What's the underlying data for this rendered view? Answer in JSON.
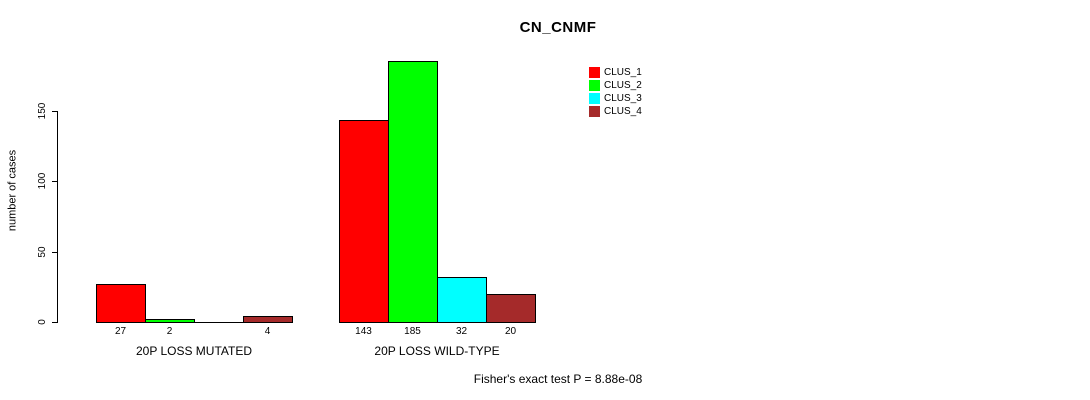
{
  "chart_data": {
    "type": "bar",
    "title": "CN_CNMF",
    "ylabel": "number of cases",
    "xlabel": "",
    "categories": [
      "20P LOSS MUTATED",
      "20P LOSS WILD-TYPE"
    ],
    "series": [
      {
        "name": "CLUS_1",
        "color": "#FF0000",
        "values": [
          27,
          143
        ]
      },
      {
        "name": "CLUS_2",
        "color": "#00FF00",
        "values": [
          2,
          185
        ]
      },
      {
        "name": "CLUS_3",
        "color": "#00FFFF",
        "values": [
          0,
          32
        ]
      },
      {
        "name": "CLUS_4",
        "color": "#A52A2A",
        "values": [
          4,
          20
        ]
      }
    ],
    "value_labels": [
      [
        "27",
        "2",
        "",
        "4"
      ],
      [
        "143",
        "185",
        "32",
        "20"
      ]
    ],
    "yticks": [
      0,
      50,
      100,
      150
    ],
    "ylim": [
      0,
      190
    ],
    "grid": false,
    "legend_position": "top-right",
    "legend": [
      "CLUS_1",
      "CLUS_2",
      "CLUS_3",
      "CLUS_4"
    ],
    "annotation": "Fisher's exact test P = 8.88e-08"
  }
}
